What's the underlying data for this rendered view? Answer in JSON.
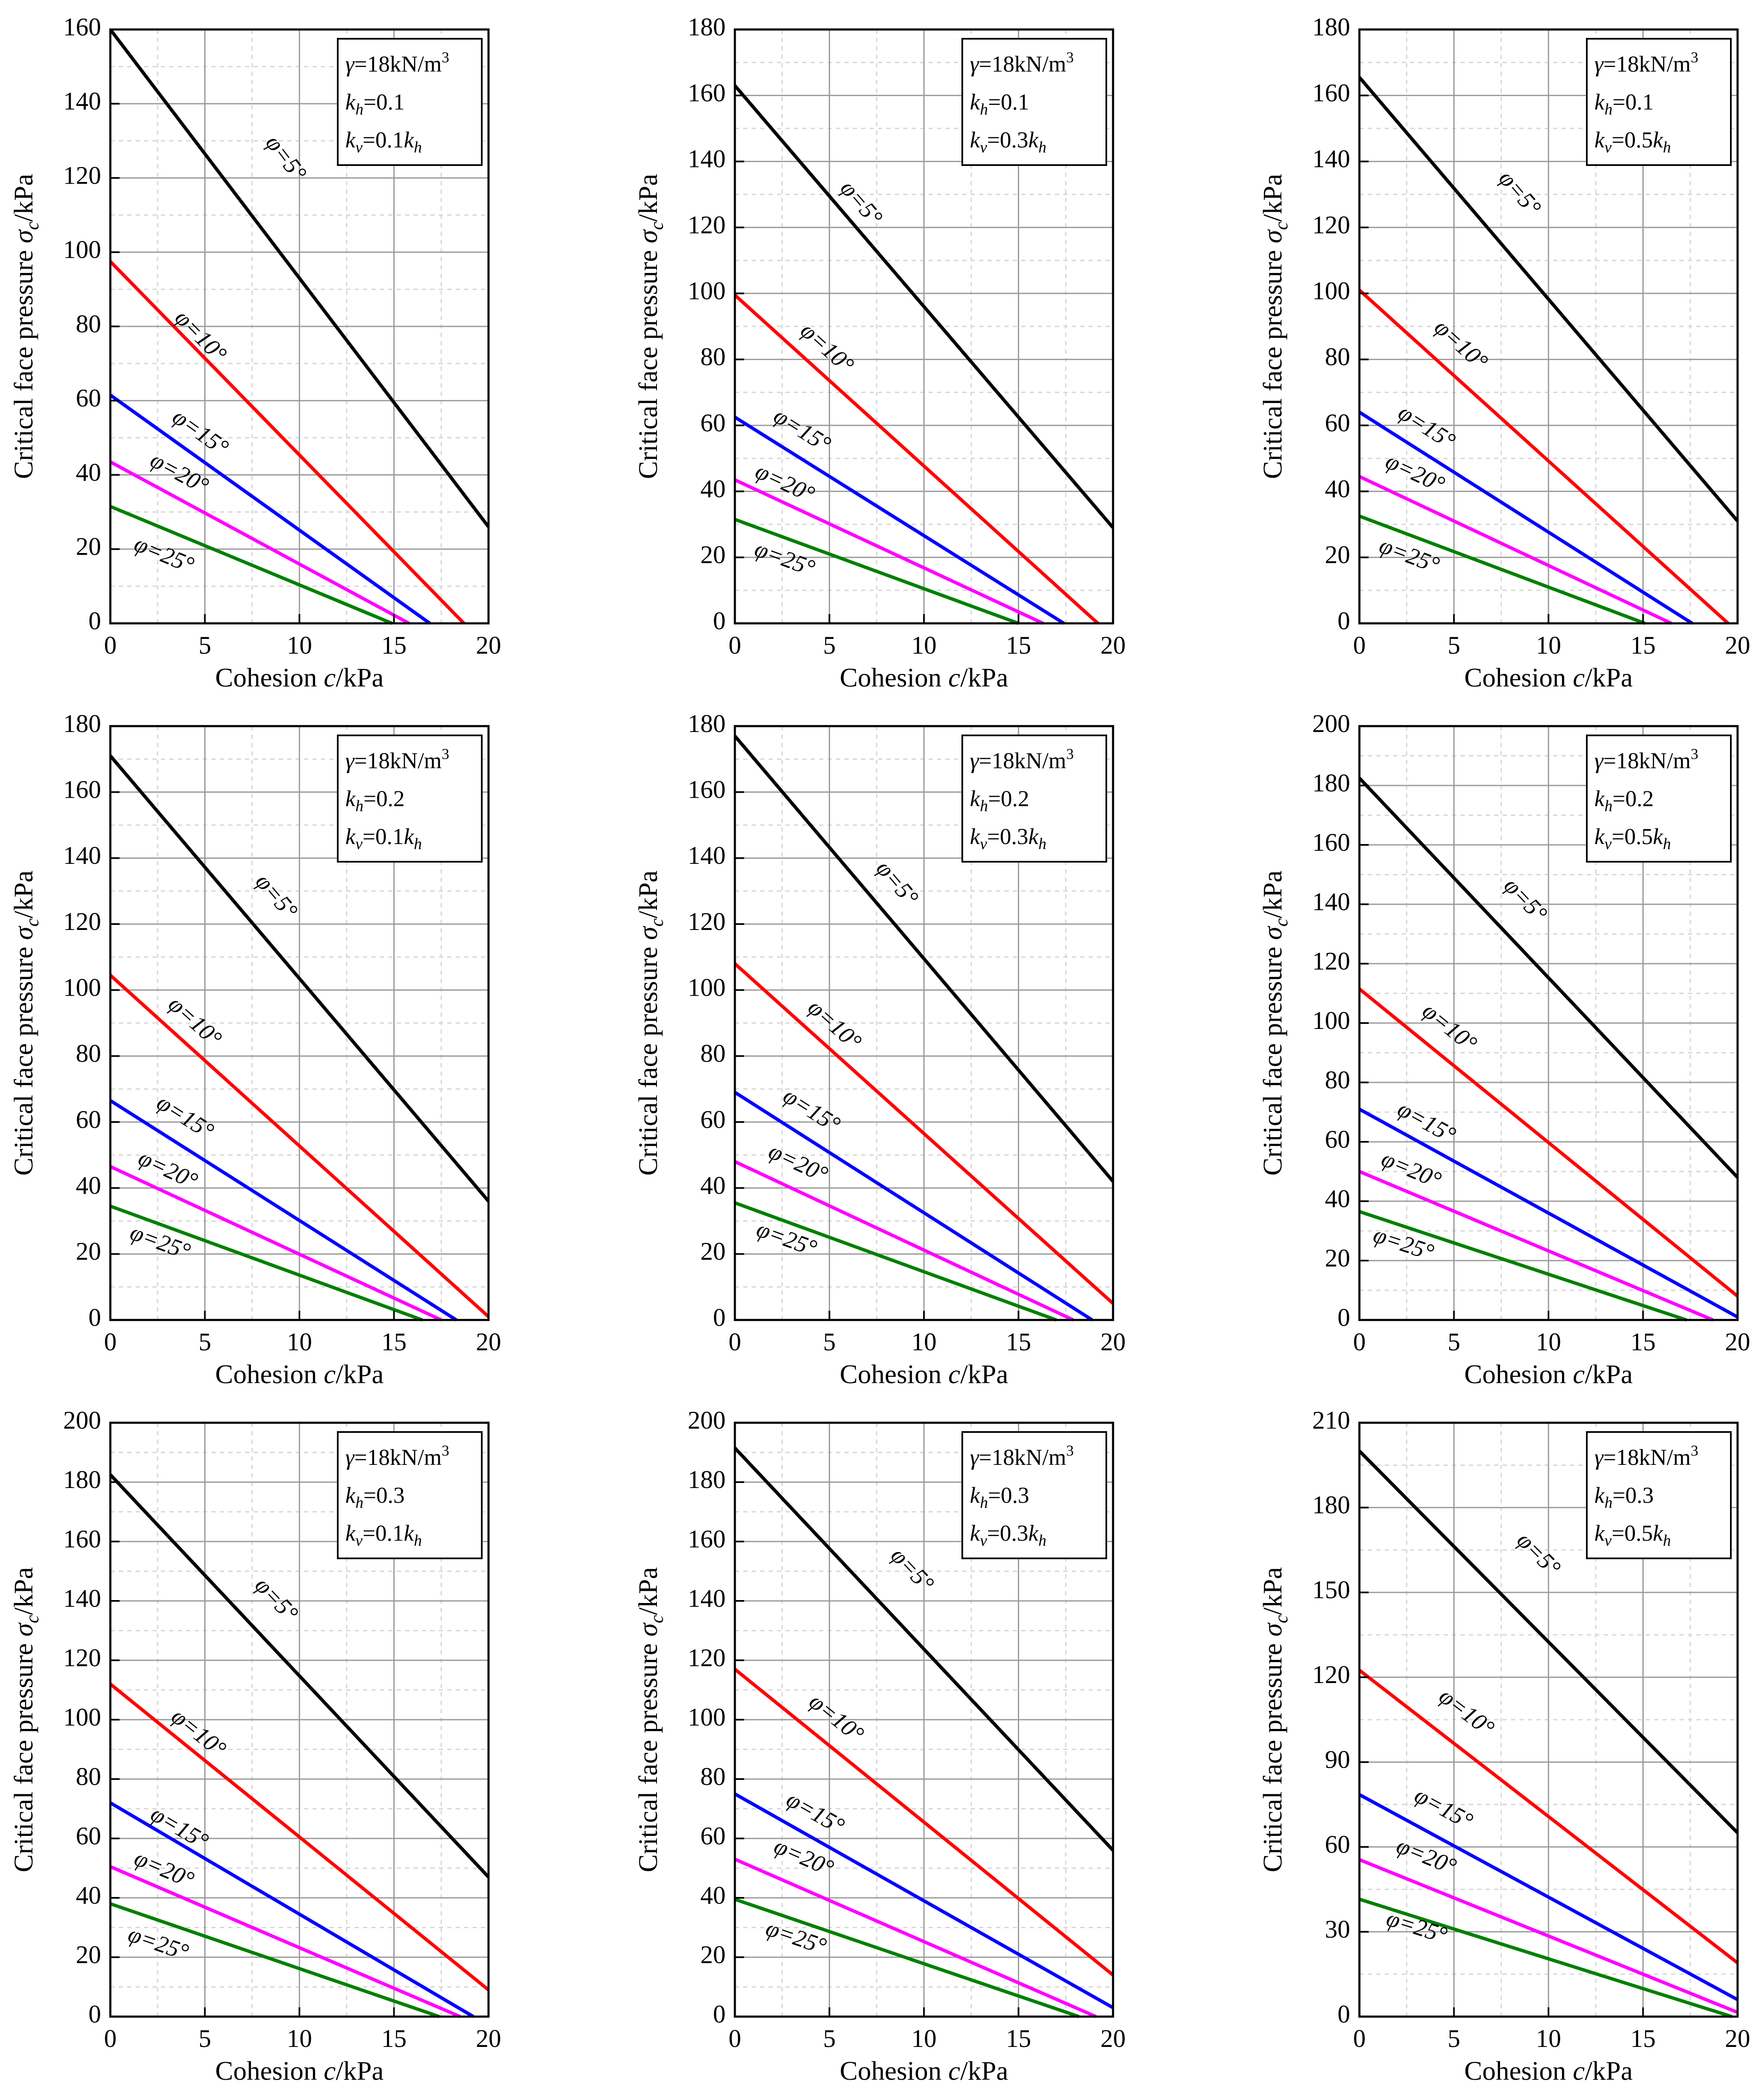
{
  "figure": {
    "x_axis_title": {
      "prefix": "Cohesion ",
      "var": "c",
      "suffix": "/kPa"
    },
    "y_axis_title": {
      "prefix": "Critical face pressure ",
      "var": "σ",
      "sub": "c",
      "suffix": "/kPa"
    },
    "legend_gamma": {
      "sym": "γ",
      "text": "=18kN/m",
      "sup": "3"
    },
    "phi_symbol": "φ",
    "colors": {
      "5": "#000000",
      "10": "#ff0000",
      "15": "#0000ff",
      "20": "#ff00ff",
      "25": "#008000"
    }
  },
  "chart_data": [
    {
      "type": "line",
      "kh": "0.1",
      "kv_factor": "0.1",
      "xlim": [
        0,
        20
      ],
      "ylim": [
        0,
        160
      ],
      "x_ticks": [
        0,
        5,
        10,
        15,
        20
      ],
      "y_ticks": [
        0,
        20,
        40,
        60,
        80,
        100,
        120,
        140,
        160
      ],
      "xlabel": "Cohesion c/kPa",
      "ylabel": "Critical face pressure σc/kPa",
      "grid": true,
      "series": [
        {
          "name": "φ=5°",
          "phi": "5",
          "x": [
            0,
            20
          ],
          "y": [
            160,
            26
          ],
          "label_at": [
            9.2,
            125
          ]
        },
        {
          "name": "φ=10°",
          "phi": "10",
          "x": [
            0,
            18.7
          ],
          "y": [
            97.5,
            0
          ],
          "label_at": [
            4.7,
            77
          ]
        },
        {
          "name": "φ=15°",
          "phi": "15",
          "x": [
            0,
            16.9
          ],
          "y": [
            61.5,
            0
          ],
          "label_at": [
            4.7,
            51
          ]
        },
        {
          "name": "φ=20°",
          "phi": "20",
          "x": [
            0,
            15.8
          ],
          "y": [
            43.5,
            0
          ],
          "label_at": [
            3.6,
            40
          ]
        },
        {
          "name": "φ=25°",
          "phi": "25",
          "x": [
            0,
            14.9
          ],
          "y": [
            31.5,
            0
          ],
          "label_at": [
            2.8,
            18
          ]
        }
      ]
    },
    {
      "type": "line",
      "kh": "0.1",
      "kv_factor": "0.3",
      "xlim": [
        0,
        20
      ],
      "ylim": [
        0,
        180
      ],
      "x_ticks": [
        0,
        5,
        10,
        15,
        20
      ],
      "y_ticks": [
        0,
        20,
        40,
        60,
        80,
        100,
        120,
        140,
        160,
        180
      ],
      "xlabel": "Cohesion c/kPa",
      "ylabel": "Critical face pressure σc/kPa",
      "grid": true,
      "series": [
        {
          "name": "φ=5°",
          "phi": "5",
          "x": [
            0,
            20
          ],
          "y": [
            163,
            29
          ],
          "label_at": [
            6.6,
            127
          ]
        },
        {
          "name": "φ=10°",
          "phi": "10",
          "x": [
            0,
            19.2
          ],
          "y": [
            99.5,
            0
          ],
          "label_at": [
            4.8,
            83
          ]
        },
        {
          "name": "φ=15°",
          "phi": "15",
          "x": [
            0,
            17.4
          ],
          "y": [
            62.5,
            0
          ],
          "label_at": [
            3.5,
            58
          ]
        },
        {
          "name": "φ=20°",
          "phi": "20",
          "x": [
            0,
            16.3
          ],
          "y": [
            43.5,
            0
          ],
          "label_at": [
            2.6,
            42
          ]
        },
        {
          "name": "φ=25°",
          "phi": "25",
          "x": [
            0,
            15.0
          ],
          "y": [
            31.5,
            0
          ],
          "label_at": [
            2.6,
            19
          ]
        }
      ]
    },
    {
      "type": "line",
      "kh": "0.1",
      "kv_factor": "0.5",
      "xlim": [
        0,
        20
      ],
      "ylim": [
        0,
        180
      ],
      "x_ticks": [
        0,
        5,
        10,
        15,
        20
      ],
      "y_ticks": [
        0,
        20,
        40,
        60,
        80,
        100,
        120,
        140,
        160,
        180
      ],
      "xlabel": "Cohesion c/kPa",
      "ylabel": "Critical face pressure σc/kPa",
      "grid": true,
      "series": [
        {
          "name": "φ=5°",
          "phi": "5",
          "x": [
            0,
            20
          ],
          "y": [
            165.5,
            31
          ],
          "label_at": [
            8.4,
            130
          ]
        },
        {
          "name": "φ=10°",
          "phi": "10",
          "x": [
            0,
            19.5
          ],
          "y": [
            101,
            0
          ],
          "label_at": [
            5.3,
            84
          ]
        },
        {
          "name": "φ=15°",
          "phi": "15",
          "x": [
            0,
            17.6
          ],
          "y": [
            64,
            0
          ],
          "label_at": [
            3.5,
            59
          ]
        },
        {
          "name": "φ=20°",
          "phi": "20",
          "x": [
            0,
            16.5
          ],
          "y": [
            44.5,
            0
          ],
          "label_at": [
            2.9,
            45
          ]
        },
        {
          "name": "φ=25°",
          "phi": "25",
          "x": [
            0,
            15.1
          ],
          "y": [
            32.5,
            0
          ],
          "label_at": [
            2.6,
            20
          ]
        }
      ]
    },
    {
      "type": "line",
      "kh": "0.2",
      "kv_factor": "0.1",
      "xlim": [
        0,
        20
      ],
      "ylim": [
        0,
        180
      ],
      "x_ticks": [
        0,
        5,
        10,
        15,
        20
      ],
      "y_ticks": [
        0,
        20,
        40,
        60,
        80,
        100,
        120,
        140,
        160,
        180
      ],
      "xlabel": "Cohesion c/kPa",
      "ylabel": "Critical face pressure σc/kPa",
      "grid": true,
      "series": [
        {
          "name": "φ=5°",
          "phi": "5",
          "x": [
            0,
            20
          ],
          "y": [
            171,
            36
          ],
          "label_at": [
            8.7,
            128
          ]
        },
        {
          "name": "φ=10°",
          "phi": "10",
          "x": [
            0,
            20
          ],
          "y": [
            104.5,
            1
          ],
          "label_at": [
            4.4,
            90
          ]
        },
        {
          "name": "φ=15°",
          "phi": "15",
          "x": [
            0,
            18.3
          ],
          "y": [
            66.5,
            0
          ],
          "label_at": [
            3.9,
            61
          ]
        },
        {
          "name": "φ=20°",
          "phi": "20",
          "x": [
            0,
            17.5
          ],
          "y": [
            46.5,
            0
          ],
          "label_at": [
            3.0,
            45
          ]
        },
        {
          "name": "φ=25°",
          "phi": "25",
          "x": [
            0,
            16.5
          ],
          "y": [
            34.5,
            0
          ],
          "label_at": [
            2.6,
            23
          ]
        }
      ]
    },
    {
      "type": "line",
      "kh": "0.2",
      "kv_factor": "0.3",
      "xlim": [
        0,
        20
      ],
      "ylim": [
        0,
        180
      ],
      "x_ticks": [
        0,
        5,
        10,
        15,
        20
      ],
      "y_ticks": [
        0,
        20,
        40,
        60,
        80,
        100,
        120,
        140,
        160,
        180
      ],
      "xlabel": "Cohesion c/kPa",
      "ylabel": "Critical face pressure σc/kPa",
      "grid": true,
      "series": [
        {
          "name": "φ=5°",
          "phi": "5",
          "x": [
            0,
            20
          ],
          "y": [
            177,
            42
          ],
          "label_at": [
            8.5,
            132
          ]
        },
        {
          "name": "φ=10°",
          "phi": "10",
          "x": [
            0,
            20
          ],
          "y": [
            108,
            5
          ],
          "label_at": [
            5.2,
            89
          ]
        },
        {
          "name": "φ=15°",
          "phi": "15",
          "x": [
            0,
            18.9
          ],
          "y": [
            69,
            0
          ],
          "label_at": [
            4.0,
            63
          ]
        },
        {
          "name": "φ=20°",
          "phi": "20",
          "x": [
            0,
            17.9
          ],
          "y": [
            48,
            0
          ],
          "label_at": [
            3.3,
            47
          ]
        },
        {
          "name": "φ=25°",
          "phi": "25",
          "x": [
            0,
            17.0
          ],
          "y": [
            35.5,
            0
          ],
          "label_at": [
            2.7,
            24
          ]
        }
      ]
    },
    {
      "type": "line",
      "kh": "0.2",
      "kv_factor": "0.5",
      "xlim": [
        0,
        20
      ],
      "ylim": [
        0,
        200
      ],
      "x_ticks": [
        0,
        5,
        10,
        15,
        20
      ],
      "y_ticks": [
        0,
        20,
        40,
        60,
        80,
        100,
        120,
        140,
        160,
        180,
        200
      ],
      "xlabel": "Cohesion c/kPa",
      "ylabel": "Critical face pressure σc/kPa",
      "grid": true,
      "series": [
        {
          "name": "φ=5°",
          "phi": "5",
          "x": [
            0,
            20
          ],
          "y": [
            182.5,
            48
          ],
          "label_at": [
            8.7,
            141
          ]
        },
        {
          "name": "φ=10°",
          "phi": "10",
          "x": [
            0,
            20
          ],
          "y": [
            111.5,
            8
          ],
          "label_at": [
            4.7,
            98
          ]
        },
        {
          "name": "φ=15°",
          "phi": "15",
          "x": [
            0,
            20
          ],
          "y": [
            71,
            1
          ],
          "label_at": [
            3.5,
            66
          ]
        },
        {
          "name": "φ=20°",
          "phi": "20",
          "x": [
            0,
            18.7
          ],
          "y": [
            50,
            0
          ],
          "label_at": [
            2.7,
            50
          ]
        },
        {
          "name": "φ=25°",
          "phi": "25",
          "x": [
            0,
            17.3
          ],
          "y": [
            36.5,
            0
          ],
          "label_at": [
            2.3,
            25
          ]
        }
      ]
    },
    {
      "type": "line",
      "kh": "0.3",
      "kv_factor": "0.1",
      "xlim": [
        0,
        20
      ],
      "ylim": [
        0,
        200
      ],
      "x_ticks": [
        0,
        5,
        10,
        15,
        20
      ],
      "y_ticks": [
        0,
        20,
        40,
        60,
        80,
        100,
        120,
        140,
        160,
        180,
        200
      ],
      "xlabel": "Cohesion c/kPa",
      "ylabel": "Critical face pressure σc/kPa",
      "grid": true,
      "series": [
        {
          "name": "φ=5°",
          "phi": "5",
          "x": [
            0,
            20
          ],
          "y": [
            182.5,
            47
          ],
          "label_at": [
            8.7,
            140
          ]
        },
        {
          "name": "φ=10°",
          "phi": "10",
          "x": [
            0,
            20
          ],
          "y": [
            112,
            9
          ],
          "label_at": [
            4.6,
            95
          ]
        },
        {
          "name": "φ=15°",
          "phi": "15",
          "x": [
            0,
            19.2
          ],
          "y": [
            72,
            0
          ],
          "label_at": [
            3.6,
            63
          ]
        },
        {
          "name": "φ=20°",
          "phi": "20",
          "x": [
            0,
            18.5
          ],
          "y": [
            50.5,
            0
          ],
          "label_at": [
            2.8,
            49
          ]
        },
        {
          "name": "φ=25°",
          "phi": "25",
          "x": [
            0,
            17.4
          ],
          "y": [
            38,
            0
          ],
          "label_at": [
            2.5,
            24
          ]
        }
      ]
    },
    {
      "type": "line",
      "kh": "0.3",
      "kv_factor": "0.3",
      "xlim": [
        0,
        20
      ],
      "ylim": [
        0,
        200
      ],
      "x_ticks": [
        0,
        5,
        10,
        15,
        20
      ],
      "y_ticks": [
        0,
        20,
        40,
        60,
        80,
        100,
        120,
        140,
        160,
        180,
        200
      ],
      "xlabel": "Cohesion c/kPa",
      "ylabel": "Critical face pressure σc/kPa",
      "grid": true,
      "series": [
        {
          "name": "φ=5°",
          "phi": "5",
          "x": [
            0,
            20
          ],
          "y": [
            191.5,
            56
          ],
          "label_at": [
            9.3,
            150
          ]
        },
        {
          "name": "φ=10°",
          "phi": "10",
          "x": [
            0,
            20
          ],
          "y": [
            117,
            14
          ],
          "label_at": [
            5.3,
            100
          ]
        },
        {
          "name": "φ=15°",
          "phi": "15",
          "x": [
            0,
            20
          ],
          "y": [
            75,
            3
          ],
          "label_at": [
            4.2,
            68
          ]
        },
        {
          "name": "φ=20°",
          "phi": "20",
          "x": [
            0,
            19.1
          ],
          "y": [
            53,
            0
          ],
          "label_at": [
            3.6,
            53
          ]
        },
        {
          "name": "φ=25°",
          "phi": "25",
          "x": [
            0,
            18.2
          ],
          "y": [
            39.5,
            0
          ],
          "label_at": [
            3.2,
            26
          ]
        }
      ]
    },
    {
      "type": "line",
      "kh": "0.3",
      "kv_factor": "0.5",
      "xlim": [
        0,
        20
      ],
      "ylim": [
        0,
        210
      ],
      "x_ticks": [
        0,
        5,
        10,
        15,
        20
      ],
      "y_ticks": [
        0,
        30,
        60,
        90,
        120,
        150,
        180,
        210
      ],
      "xlabel": "Cohesion c/kPa",
      "ylabel": "Critical face pressure σc/kPa",
      "grid": true,
      "series": [
        {
          "name": "φ=5°",
          "phi": "5",
          "x": [
            0,
            20
          ],
          "y": [
            200,
            65
          ],
          "label_at": [
            9.4,
            163
          ]
        },
        {
          "name": "φ=10°",
          "phi": "10",
          "x": [
            0,
            20
          ],
          "y": [
            122.5,
            19
          ],
          "label_at": [
            5.6,
            107
          ]
        },
        {
          "name": "φ=15°",
          "phi": "15",
          "x": [
            0,
            20
          ],
          "y": [
            78.5,
            6
          ],
          "label_at": [
            4.4,
            73
          ]
        },
        {
          "name": "φ=20°",
          "phi": "20",
          "x": [
            0,
            20
          ],
          "y": [
            55.5,
            1.5
          ],
          "label_at": [
            3.5,
            56
          ]
        },
        {
          "name": "φ=25°",
          "phi": "25",
          "x": [
            0,
            19.7
          ],
          "y": [
            41.5,
            0
          ],
          "label_at": [
            3.0,
            31
          ]
        }
      ]
    }
  ]
}
